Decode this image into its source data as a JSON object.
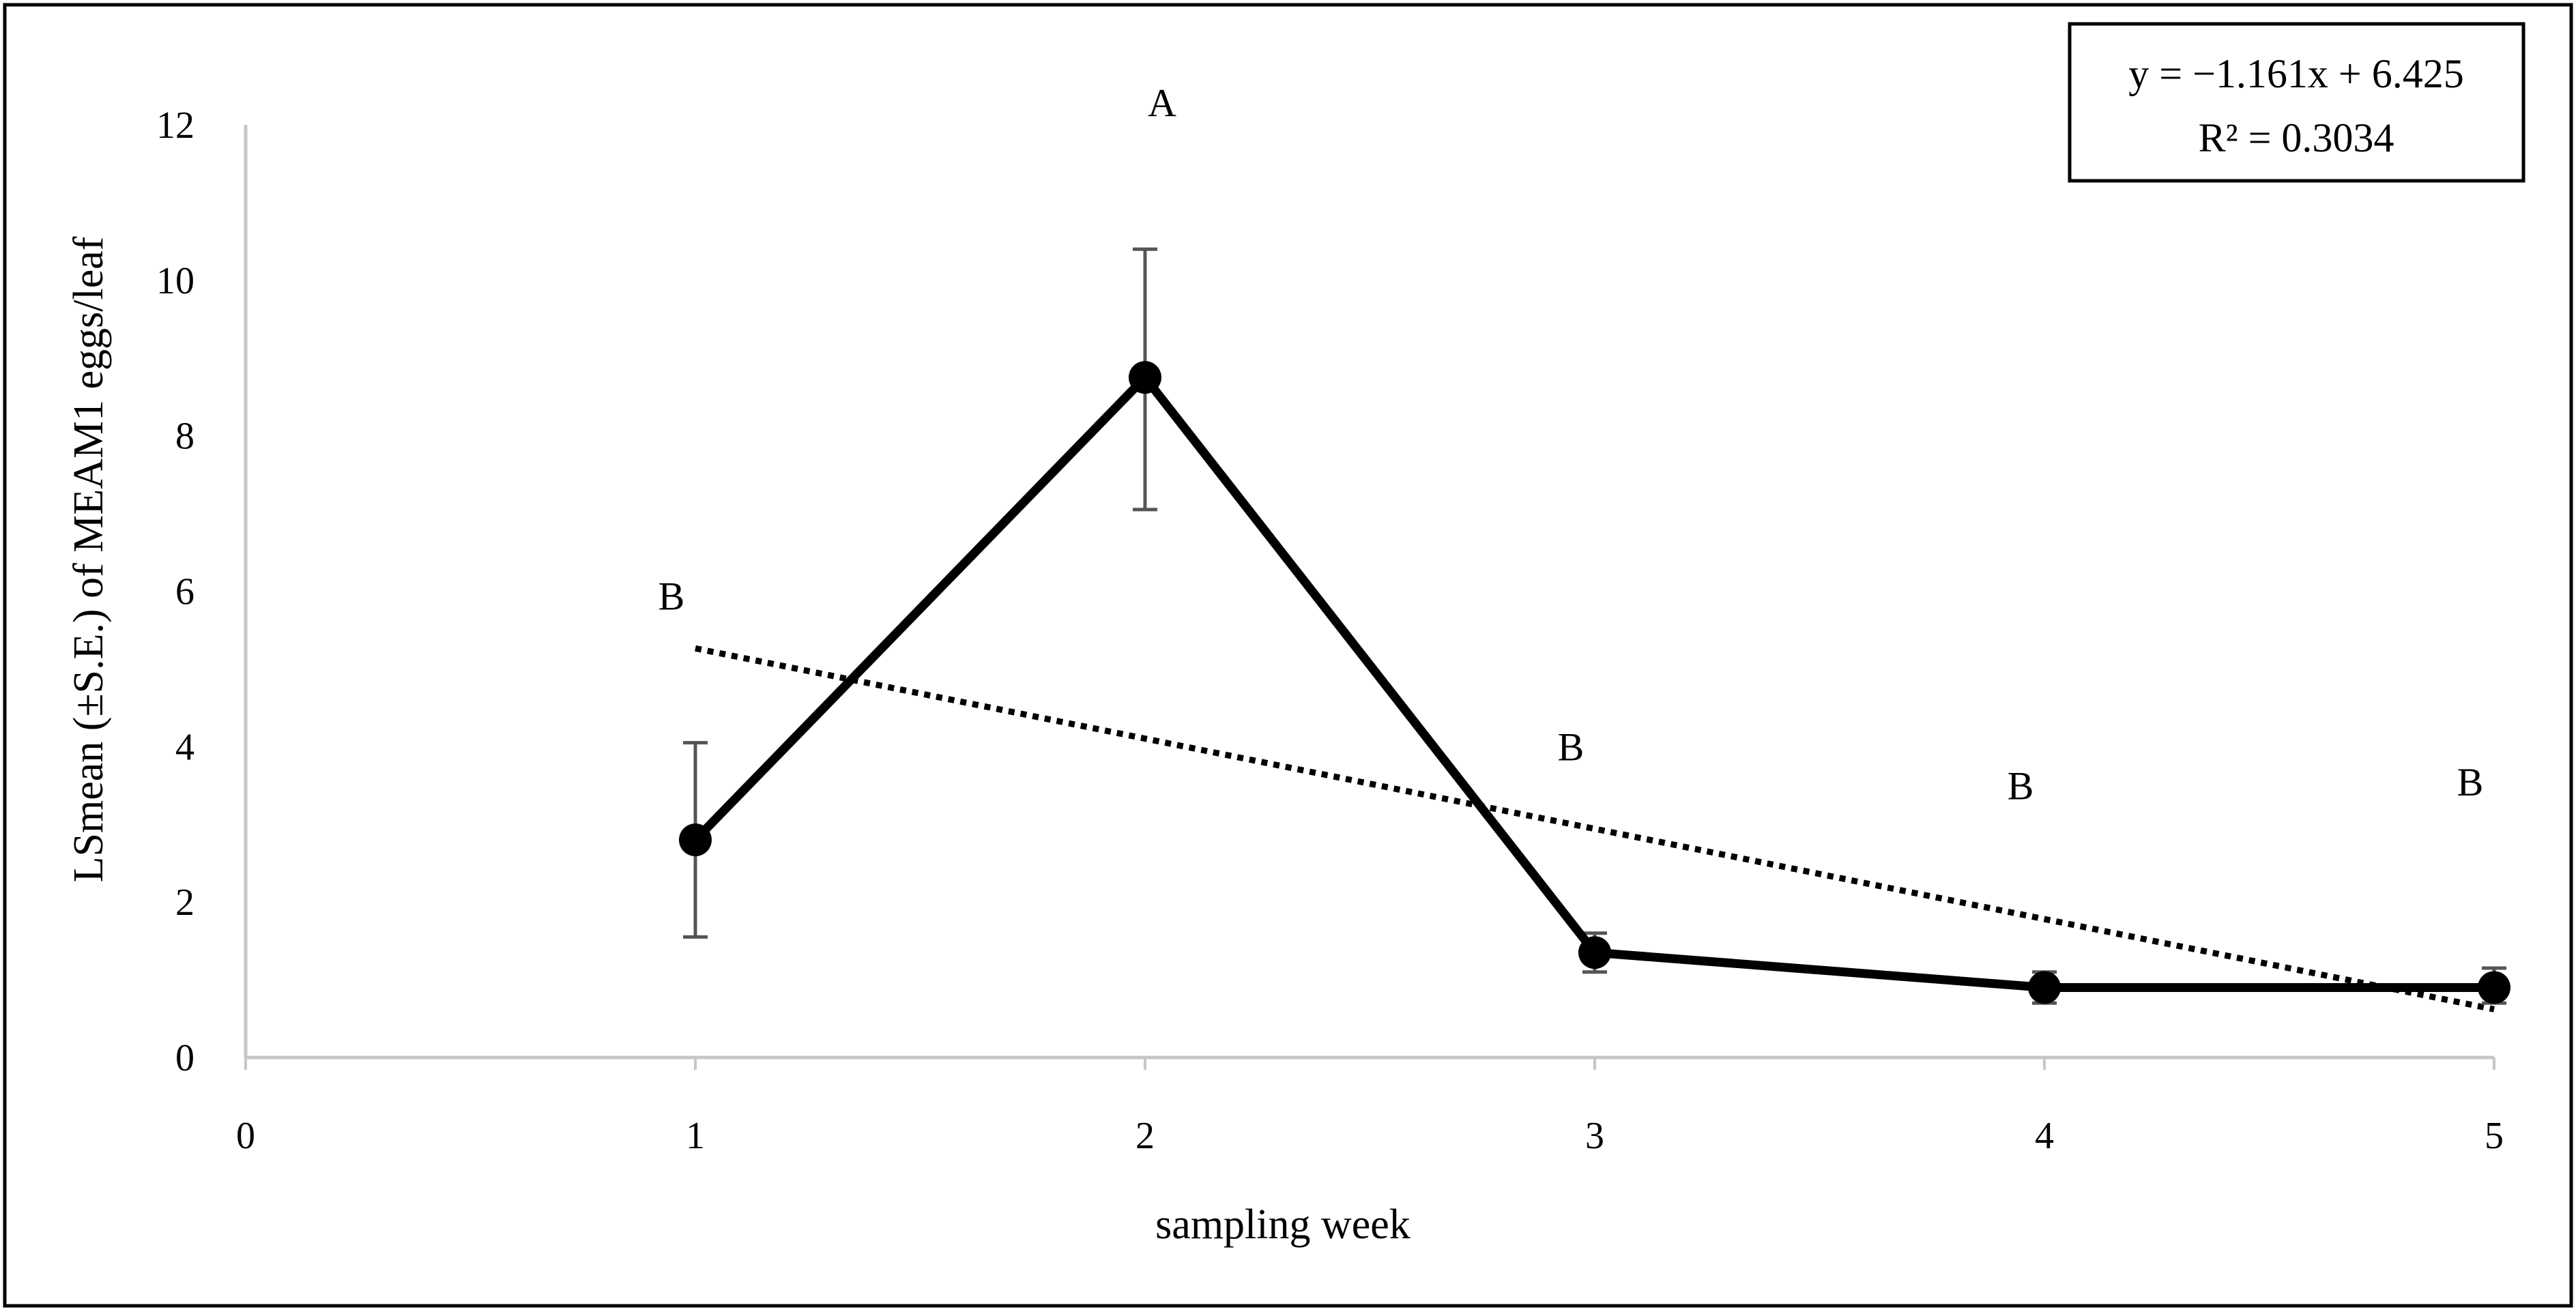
{
  "chart_data": {
    "type": "line",
    "title": "",
    "xlabel": "sampling week",
    "ylabel": "LSmean (±S.E.) of MEAM1 eggs/leaf",
    "xlim": [
      0,
      5
    ],
    "ylim": [
      0,
      12
    ],
    "x_ticks": [
      "0",
      "1",
      "2",
      "3",
      "4",
      "5"
    ],
    "y_ticks": [
      "0",
      "2",
      "4",
      "6",
      "8",
      "10",
      "12"
    ],
    "grid": false,
    "series": [
      {
        "name": "LSmean",
        "x": [
          1,
          2,
          3,
          4,
          5
        ],
        "values": [
          2.8,
          8.75,
          1.35,
          0.9,
          0.9
        ],
        "se_lower": [
          1.55,
          7.05,
          1.1,
          0.7,
          0.7
        ],
        "se_upper": [
          4.05,
          10.4,
          1.6,
          1.1,
          1.15
        ],
        "letters": [
          "B",
          "A",
          "B",
          "B",
          "B"
        ]
      }
    ],
    "trendline": {
      "style": "dotted",
      "slope": -1.161,
      "intercept": 6.425,
      "equation": "y = −1.161x + 6.425",
      "r_squared": "R² = 0.3034",
      "legend_position": "top-right"
    }
  }
}
